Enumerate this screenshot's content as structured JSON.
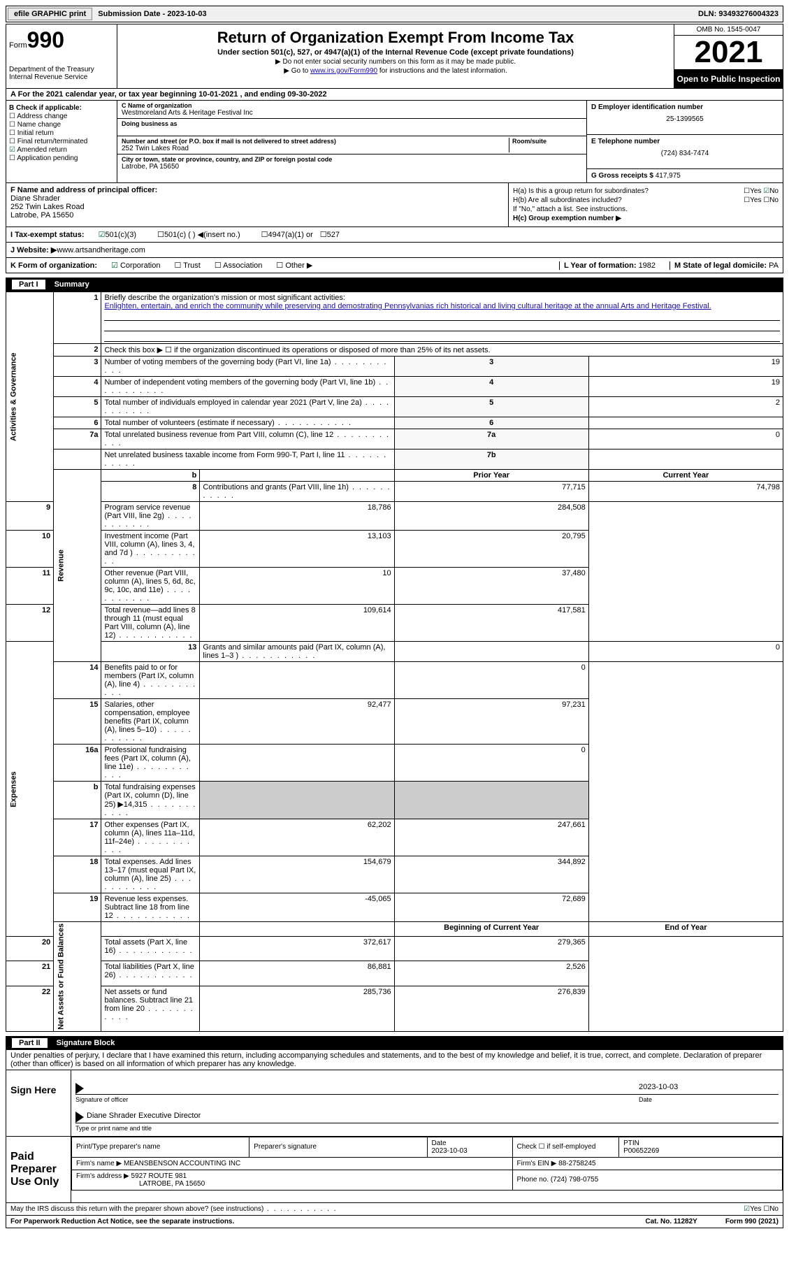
{
  "topbar": {
    "efile_label": "efile GRAPHIC print",
    "sub_date_label": "Submission Date - 2023-10-03",
    "dln": "DLN: 93493276004323"
  },
  "header": {
    "form_word": "Form",
    "form_num": "990",
    "dept": "Department of the Treasury",
    "irs": "Internal Revenue Service",
    "title": "Return of Organization Exempt From Income Tax",
    "sub1": "Under section 501(c), 527, or 4947(a)(1) of the Internal Revenue Code (except private foundations)",
    "sub2": "▶ Do not enter social security numbers on this form as it may be made public.",
    "sub3_pre": "▶ Go to ",
    "sub3_link": "www.irs.gov/Form990",
    "sub3_post": " for instructions and the latest information.",
    "omb": "OMB No. 1545-0047",
    "year": "2021",
    "open_public": "Open to Public Inspection"
  },
  "row_a": "A For the 2021 calendar year, or tax year beginning 10-01-2021   , and ending 09-30-2022",
  "col_b": {
    "hdr": "B Check if applicable:",
    "addr_change": "Address change",
    "name_change": "Name change",
    "initial": "Initial return",
    "final": "Final return/terminated",
    "amended": "Amended return",
    "app_pending": "Application pending"
  },
  "col_c": {
    "name_lbl": "C Name of organization",
    "name": "Westmoreland Arts & Heritage Festival Inc",
    "dba_lbl": "Doing business as",
    "dba": "",
    "addr_lbl": "Number and street (or P.O. box if mail is not delivered to street address)",
    "room_lbl": "Room/suite",
    "addr": "252 Twin Lakes Road",
    "city_lbl": "City or town, state or province, country, and ZIP or foreign postal code",
    "city": "Latrobe, PA   15650"
  },
  "col_d": {
    "ein_lbl": "D Employer identification number",
    "ein": "25-1399565",
    "tel_lbl": "E Telephone number",
    "tel": "(724) 834-7474",
    "gross_lbl": "G Gross receipts $",
    "gross": "417,975"
  },
  "f_block": {
    "hdr": "F  Name and address of principal officer:",
    "name": "Diane Shrader",
    "addr1": "252 Twin Lakes Road",
    "addr2": "Latrobe, PA   15650"
  },
  "h_block": {
    "ha": "H(a)  Is this a group return for subordinates?",
    "ha_yes": "Yes",
    "ha_no": "No",
    "hb": "H(b)  Are all subordinates included?",
    "hb_note": "If \"No,\" attach a list. See instructions.",
    "hc": "H(c)  Group exemption number ▶"
  },
  "status": {
    "lbl": "I   Tax-exempt status:",
    "c3": "501(c)(3)",
    "c": "501(c) (  ) ◀(insert no.)",
    "a1": "4947(a)(1) or",
    "s527": "527"
  },
  "website": {
    "lbl": "J  Website: ▶",
    "val": "  www.artsandheritage.com"
  },
  "korg": {
    "lbl": "K Form of organization:",
    "corp": "Corporation",
    "trust": "Trust",
    "assoc": "Association",
    "other": "Other ▶",
    "l_lbl": "L Year of formation:",
    "l_val": "1982",
    "m_lbl": "M State of legal domicile:",
    "m_val": "PA"
  },
  "part1": {
    "hdr_num": "Part I",
    "hdr_txt": "Summary",
    "q1_lbl": "Briefly describe the organization's mission or most significant activities:",
    "q1_val": "Enlighten, entertain, and enrich the community while preserving and demostrating Pennsylvanias rich historical and living cultural heritage at the annual Arts and Heritage Festival.",
    "q2": "Check this box ▶ ☐  if the organization discontinued its operations or disposed of more than 25% of its net assets.",
    "rows": [
      {
        "n": "3",
        "t": "Number of voting members of the governing body (Part VI, line 1a)",
        "b": "3",
        "v": "19"
      },
      {
        "n": "4",
        "t": "Number of independent voting members of the governing body (Part VI, line 1b)",
        "b": "4",
        "v": "19"
      },
      {
        "n": "5",
        "t": "Total number of individuals employed in calendar year 2021 (Part V, line 2a)",
        "b": "5",
        "v": "2"
      },
      {
        "n": "6",
        "t": "Total number of volunteers (estimate if necessary)",
        "b": "6",
        "v": ""
      },
      {
        "n": "7a",
        "t": "Total unrelated business revenue from Part VIII, column (C), line 12",
        "b": "7a",
        "v": "0"
      },
      {
        "n": "",
        "t": "Net unrelated business taxable income from Form 990-T, Part I, line 11",
        "b": "7b",
        "v": ""
      }
    ],
    "py_hdr": "Prior Year",
    "cy_hdr": "Current Year",
    "boy_hdr": "Beginning of Current Year",
    "eoy_hdr": "End of Year",
    "rev_rows": [
      {
        "n": "8",
        "t": "Contributions and grants (Part VIII, line 1h)",
        "py": "77,715",
        "cy": "74,798"
      },
      {
        "n": "9",
        "t": "Program service revenue (Part VIII, line 2g)",
        "py": "18,786",
        "cy": "284,508"
      },
      {
        "n": "10",
        "t": "Investment income (Part VIII, column (A), lines 3, 4, and 7d )",
        "py": "13,103",
        "cy": "20,795"
      },
      {
        "n": "11",
        "t": "Other revenue (Part VIII, column (A), lines 5, 6d, 8c, 9c, 10c, and 11e)",
        "py": "10",
        "cy": "37,480"
      },
      {
        "n": "12",
        "t": "Total revenue—add lines 8 through 11 (must equal Part VIII, column (A), line 12)",
        "py": "109,614",
        "cy": "417,581"
      }
    ],
    "exp_rows": [
      {
        "n": "13",
        "t": "Grants and similar amounts paid (Part IX, column (A), lines 1–3 )",
        "py": "",
        "cy": "0"
      },
      {
        "n": "14",
        "t": "Benefits paid to or for members (Part IX, column (A), line 4)",
        "py": "",
        "cy": "0"
      },
      {
        "n": "15",
        "t": "Salaries, other compensation, employee benefits (Part IX, column (A), lines 5–10)",
        "py": "92,477",
        "cy": "97,231"
      },
      {
        "n": "16a",
        "t": "Professional fundraising fees (Part IX, column (A), line 11e)",
        "py": "",
        "cy": "0"
      },
      {
        "n": "b",
        "t": "Total fundraising expenses (Part IX, column (D), line 25) ▶14,315",
        "py": "GREY",
        "cy": "GREY"
      },
      {
        "n": "17",
        "t": "Other expenses (Part IX, column (A), lines 11a–11d, 11f–24e)",
        "py": "62,202",
        "cy": "247,661"
      },
      {
        "n": "18",
        "t": "Total expenses. Add lines 13–17 (must equal Part IX, column (A), line 25)",
        "py": "154,679",
        "cy": "344,892"
      },
      {
        "n": "19",
        "t": "Revenue less expenses. Subtract line 18 from line 12",
        "py": "-45,065",
        "cy": "72,689"
      }
    ],
    "net_rows": [
      {
        "n": "20",
        "t": "Total assets (Part X, line 16)",
        "py": "372,617",
        "cy": "279,365"
      },
      {
        "n": "21",
        "t": "Total liabilities (Part X, line 26)",
        "py": "86,881",
        "cy": "2,526"
      },
      {
        "n": "22",
        "t": "Net assets or fund balances. Subtract line 21 from line 20",
        "py": "285,736",
        "cy": "276,839"
      }
    ],
    "side_gov": "Activities & Governance",
    "side_rev": "Revenue",
    "side_exp": "Expenses",
    "side_net": "Net Assets or Fund Balances"
  },
  "part2": {
    "hdr_num": "Part II",
    "hdr_txt": "Signature Block",
    "decl": "Under penalties of perjury, I declare that I have examined this return, including accompanying schedules and statements, and to the best of my knowledge and belief, it is true, correct, and complete. Declaration of preparer (other than officer) is based on all information of which preparer has any knowledge.",
    "sign_here": "Sign Here",
    "sig_officer": "Signature of officer",
    "sig_date": "2023-10-03",
    "date_lbl": "Date",
    "sig_name": "Diane Shrader  Executive Director",
    "sig_name_lbl": "Type or print name and title"
  },
  "prep": {
    "hdr": "Paid Preparer Use Only",
    "print_lbl": "Print/Type preparer's name",
    "prep_sig_lbl": "Preparer's signature",
    "date_lbl": "Date",
    "date": "2023-10-03",
    "check_lbl": "Check ☐ if self-employed",
    "ptin_lbl": "PTIN",
    "ptin": "P00652269",
    "firm_name_lbl": "Firm's name     ▶",
    "firm_name": "MEANSBENSON ACCOUNTING INC",
    "firm_ein_lbl": "Firm's EIN ▶",
    "firm_ein": "88-2758245",
    "firm_addr_lbl": "Firm's address ▶",
    "firm_addr1": "5927 ROUTE 981",
    "firm_addr2": "LATROBE, PA   15650",
    "phone_lbl": "Phone no.",
    "phone": "(724) 798-0755"
  },
  "footer": {
    "discuss": "May the IRS discuss this return with the preparer shown above? (see instructions)",
    "yes": "Yes",
    "no": "No",
    "pra": "For Paperwork Reduction Act Notice, see the separate instructions.",
    "cat": "Cat. No. 11282Y",
    "form": "Form 990 (2021)"
  }
}
